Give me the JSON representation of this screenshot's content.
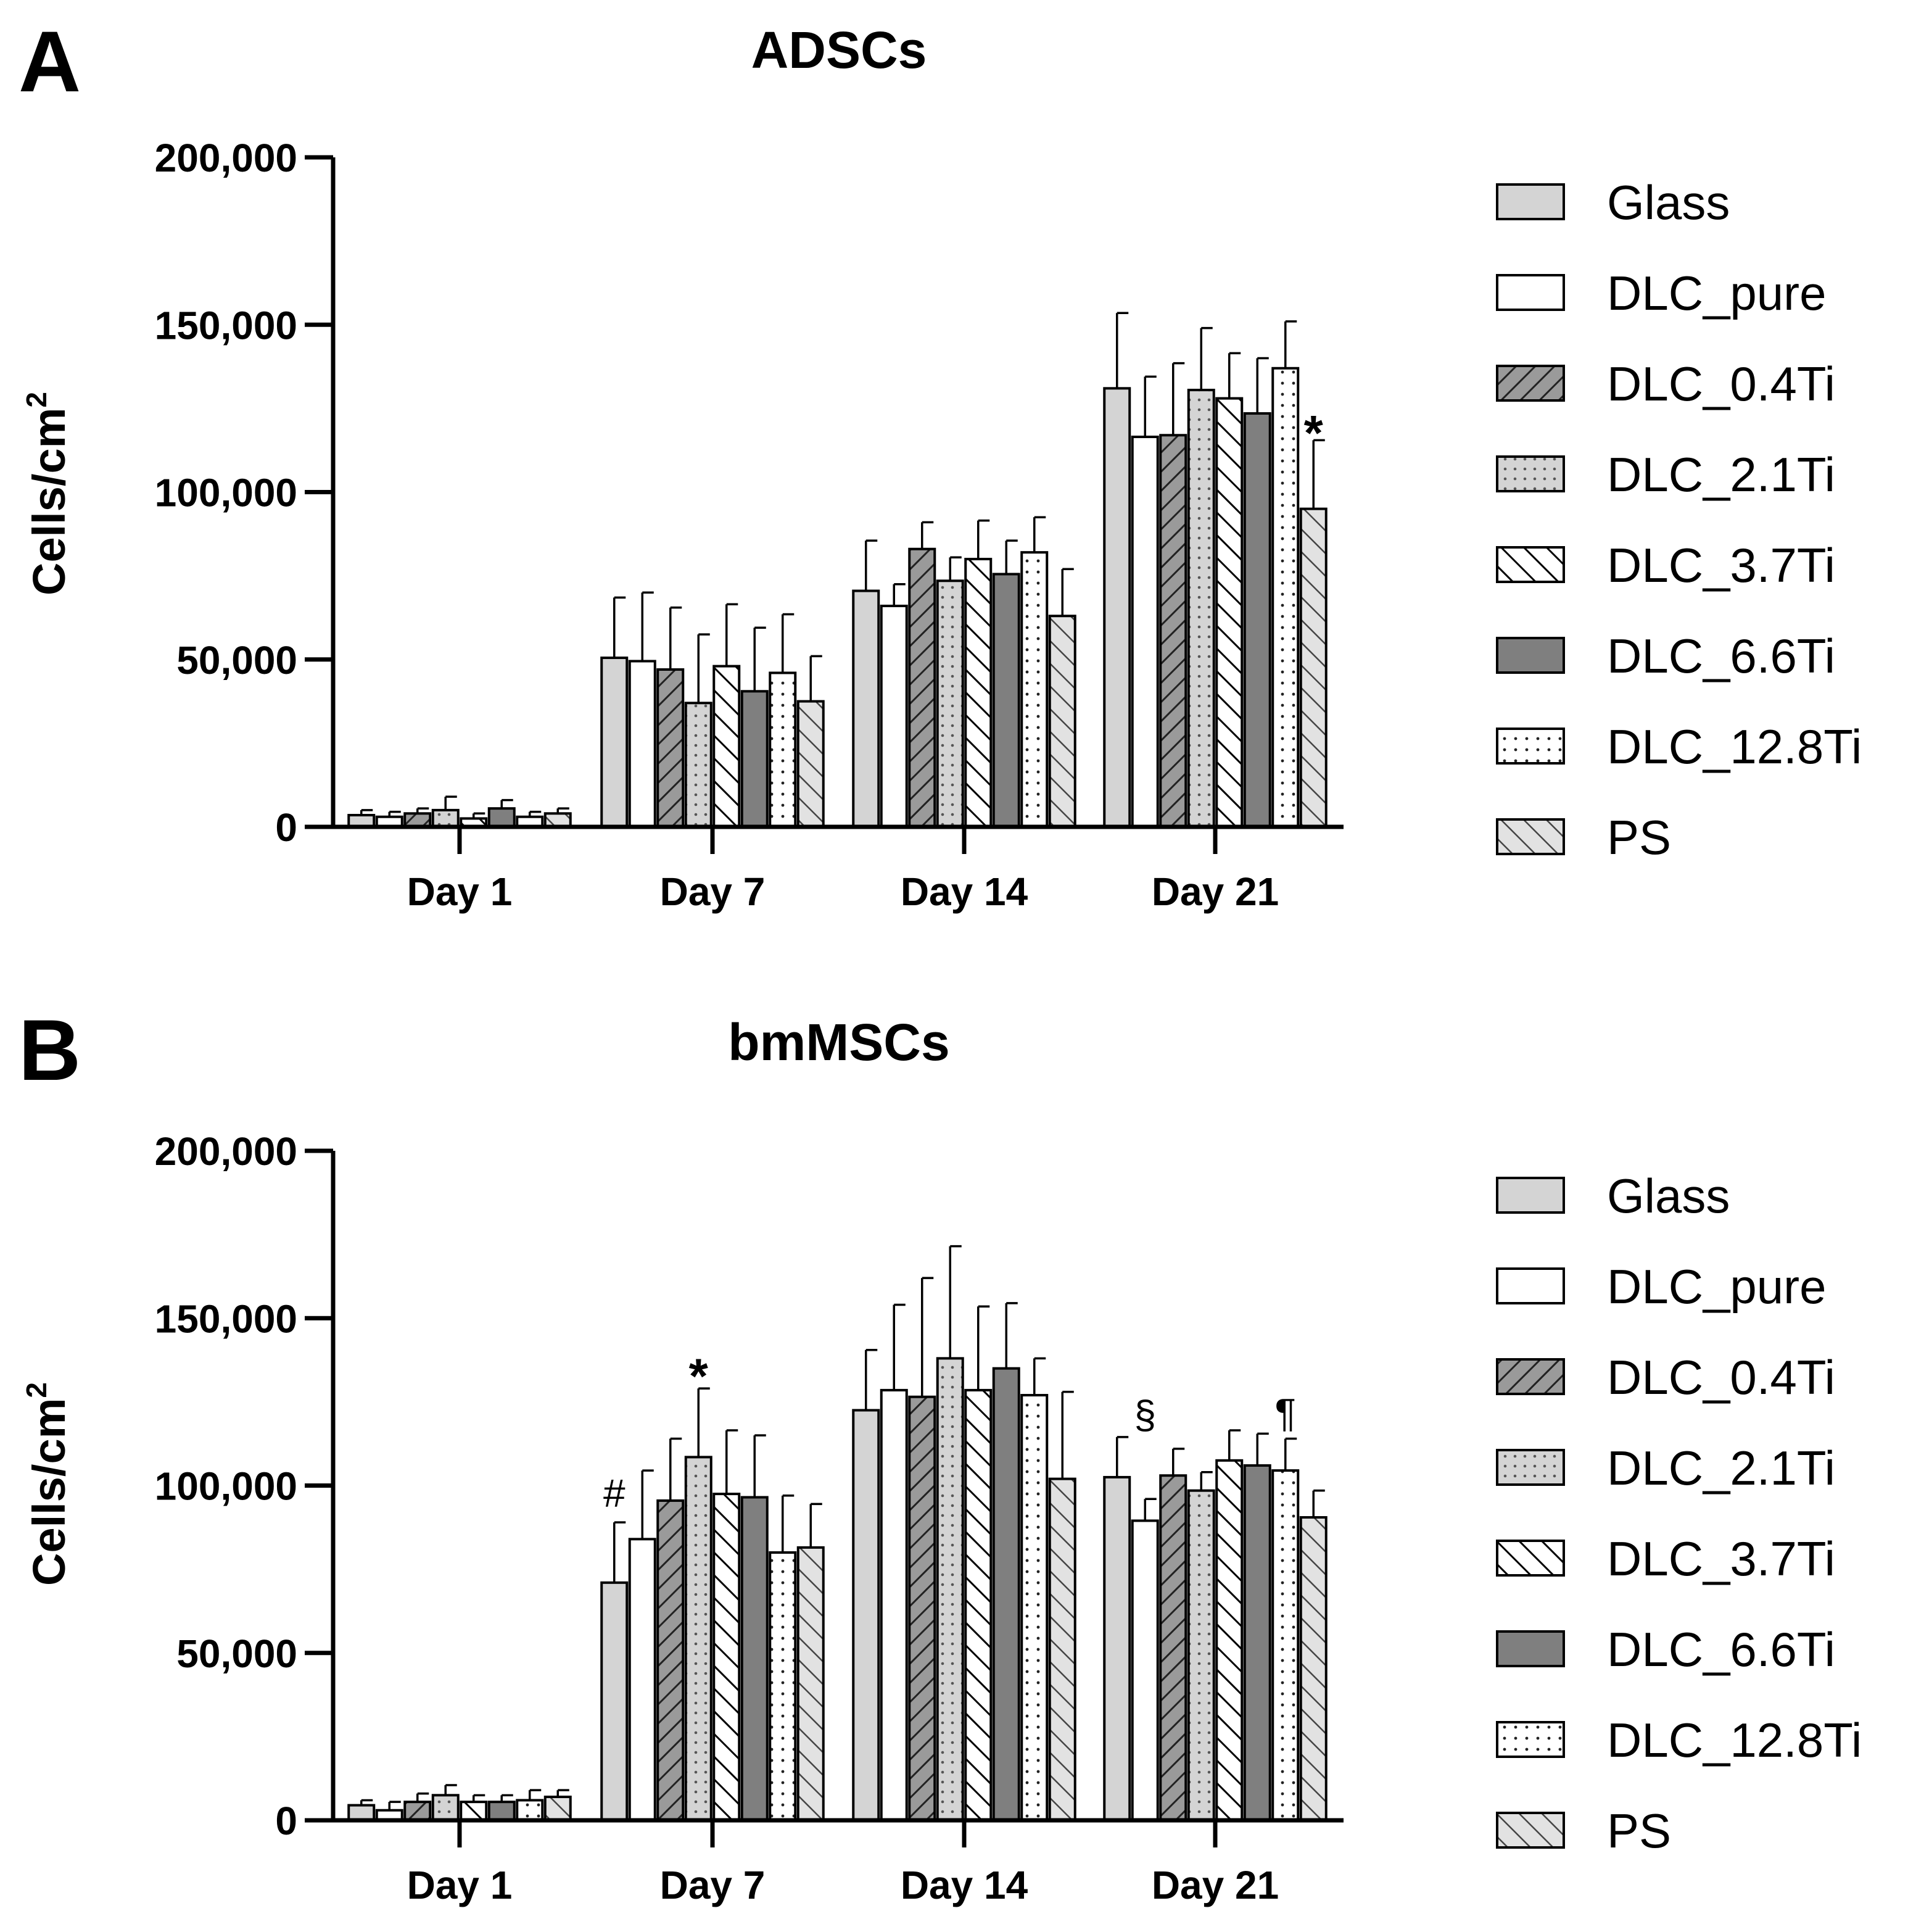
{
  "colors": {
    "light_gray": "#d4d4d4",
    "white": "#ffffff",
    "dark_gray": "#7f7f7f",
    "line": "#000000"
  },
  "chart_data": [
    {
      "type": "bar",
      "panel": "A",
      "title": "ADSCs",
      "ylabel": "Cells/cm",
      "ylabel_sup": "2",
      "ylim": [
        0,
        200000
      ],
      "yticks": [
        0,
        50000,
        100000,
        150000,
        200000
      ],
      "ytick_labels": [
        "0",
        "50,000",
        "100,000",
        "150,000",
        "200,000"
      ],
      "legend_position": "right",
      "categories": [
        "Day 1",
        "Day 7",
        "Day 14",
        "Day 21"
      ],
      "series": [
        {
          "name": "Glass",
          "fill": "solid-light",
          "values": [
            3500,
            50500,
            70500,
            131000
          ],
          "errors": [
            1500,
            18000,
            15000,
            22500
          ]
        },
        {
          "name": "DLC_pure",
          "fill": "white",
          "values": [
            3000,
            49500,
            66000,
            116500
          ],
          "errors": [
            1500,
            20500,
            6500,
            18000
          ]
        },
        {
          "name": "DLC_0.4Ti",
          "fill": "diagonal-dense",
          "values": [
            4000,
            47000,
            83000,
            117000
          ],
          "errors": [
            1500,
            18500,
            8000,
            21500
          ]
        },
        {
          "name": "DLC_2.1Ti",
          "fill": "dots-gray",
          "values": [
            5000,
            37000,
            73500,
            130500
          ],
          "errors": [
            4000,
            20500,
            7000,
            18500
          ]
        },
        {
          "name": "DLC_3.7Ti",
          "fill": "diagonal-back",
          "values": [
            2500,
            48000,
            80000,
            128000
          ],
          "errors": [
            1500,
            18500,
            11500,
            13500
          ]
        },
        {
          "name": "DLC_6.6Ti",
          "fill": "solid-dark",
          "values": [
            5500,
            40500,
            75500,
            123500
          ],
          "errors": [
            2500,
            19000,
            10000,
            16500
          ]
        },
        {
          "name": "DLC_12.8Ti",
          "fill": "dots-white",
          "values": [
            3000,
            46000,
            82000,
            137000
          ],
          "errors": [
            1500,
            17500,
            10500,
            14000
          ]
        },
        {
          "name": "PS",
          "fill": "diagonal-light",
          "values": [
            4000,
            37500,
            63000,
            95000
          ],
          "errors": [
            1500,
            13500,
            14000,
            20500
          ]
        }
      ],
      "annotations": [
        {
          "text": "*",
          "category": "Day 21",
          "series": "PS",
          "at_value": 120000
        }
      ]
    },
    {
      "type": "bar",
      "panel": "B",
      "title": "bmMSCs",
      "ylabel": "Cells/cm",
      "ylabel_sup": "2",
      "ylim": [
        0,
        200000
      ],
      "yticks": [
        0,
        50000,
        100000,
        150000,
        200000
      ],
      "ytick_labels": [
        "0",
        "50,000",
        "100,000",
        "150,000",
        "200,000"
      ],
      "legend_position": "right",
      "categories": [
        "Day 1",
        "Day 7",
        "Day 14",
        "Day 21"
      ],
      "series": [
        {
          "name": "Glass",
          "fill": "solid-light",
          "values": [
            4500,
            71000,
            122500,
            102500
          ],
          "errors": [
            1500,
            18000,
            18000,
            12000
          ]
        },
        {
          "name": "DLC_pure",
          "fill": "white",
          "values": [
            3000,
            84000,
            128500,
            89500
          ],
          "errors": [
            2500,
            20500,
            25500,
            6500
          ]
        },
        {
          "name": "DLC_0.4Ti",
          "fill": "diagonal-dense",
          "values": [
            5500,
            95500,
            126500,
            103000
          ],
          "errors": [
            2500,
            18500,
            35500,
            8000
          ]
        },
        {
          "name": "DLC_2.1Ti",
          "fill": "dots-gray",
          "values": [
            7500,
            108500,
            138000,
            98500
          ],
          "errors": [
            3000,
            20500,
            33500,
            5500
          ]
        },
        {
          "name": "DLC_3.7Ti",
          "fill": "diagonal-back",
          "values": [
            5500,
            97500,
            128500,
            107500
          ],
          "errors": [
            2000,
            19000,
            25000,
            9000
          ]
        },
        {
          "name": "DLC_6.6Ti",
          "fill": "solid-dark",
          "values": [
            5500,
            96500,
            135000,
            106000
          ],
          "errors": [
            2000,
            18500,
            19500,
            9500
          ]
        },
        {
          "name": "DLC_12.8Ti",
          "fill": "dots-white",
          "values": [
            6000,
            80000,
            127000,
            104500
          ],
          "errors": [
            3000,
            17000,
            11000,
            9500
          ]
        },
        {
          "name": "PS",
          "fill": "diagonal-light",
          "values": [
            7000,
            81500,
            102000,
            90500
          ],
          "errors": [
            2000,
            13000,
            26000,
            8000
          ]
        }
      ],
      "annotations": [
        {
          "text": "#",
          "category": "Day 7",
          "series": "Glass",
          "at_value": 95500
        },
        {
          "text": "*",
          "category": "Day 7",
          "series": "DLC_2.1Ti",
          "at_value": 135000
        },
        {
          "text": "§",
          "category": "Day 21",
          "series": "DLC_pure",
          "at_value": 119000
        },
        {
          "text": "¶",
          "category": "Day 21",
          "series": "DLC_12.8Ti",
          "at_value": 119500
        }
      ]
    }
  ]
}
